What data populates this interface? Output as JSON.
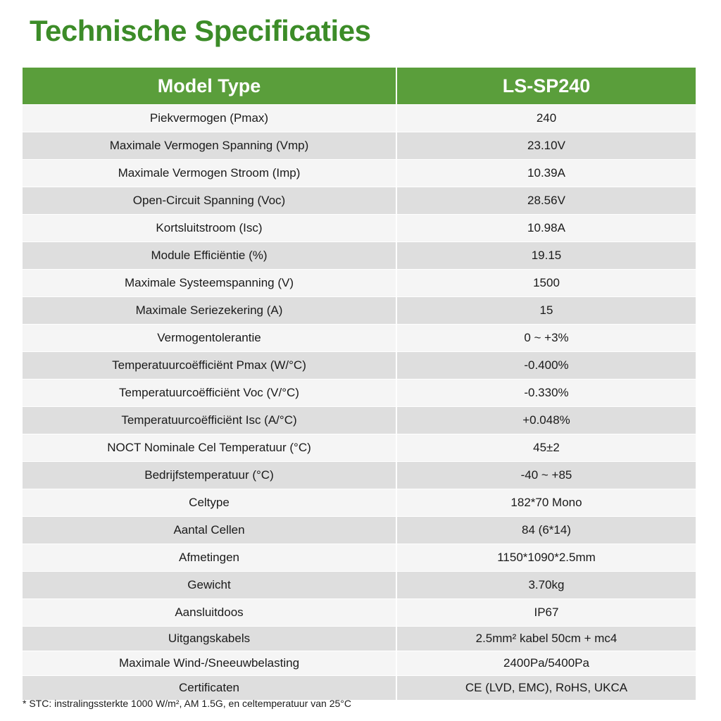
{
  "title": "Technische Specificaties",
  "table": {
    "header": [
      "Model Type",
      "LS-SP240"
    ],
    "rows": [
      [
        "Piekvermogen (Pmax)",
        "240"
      ],
      [
        "Maximale Vermogen Spanning (Vmp)",
        "23.10V"
      ],
      [
        "Maximale Vermogen Stroom (Imp)",
        "10.39A"
      ],
      [
        "Open-Circuit Spanning (Voc)",
        "28.56V"
      ],
      [
        "Kortsluitstroom (Isc)",
        "10.98A"
      ],
      [
        "Module Efficiëntie (%)",
        "19.15"
      ],
      [
        "Maximale Systeemspanning (V)",
        "1500"
      ],
      [
        "Maximale Seriezekering (A)",
        "15"
      ],
      [
        "Vermogentolerantie",
        "0 ~ +3%"
      ],
      [
        "Temperatuurcoëfficiënt Pmax (W/°C)",
        "-0.400%"
      ],
      [
        "Temperatuurcoëfficiënt Voc (V/°C)",
        "-0.330%"
      ],
      [
        "Temperatuurcoëfficiënt Isc (A/°C)",
        "+0.048%"
      ],
      [
        "NOCT Nominale Cel Temperatuur (°C)",
        "45±2"
      ],
      [
        "Bedrijfstemperatuur (°C)",
        "-40 ~ +85"
      ],
      [
        "Celtype",
        "182*70 Mono"
      ],
      [
        "Aantal Cellen",
        "84 (6*14)"
      ],
      [
        "Afmetingen",
        "1150*1090*2.5mm"
      ],
      [
        "Gewicht",
        "3.70kg"
      ],
      [
        "Aansluitdoos",
        "IP67"
      ],
      [
        "Uitgangskabels",
        "2.5mm² kabel 50cm + mc4"
      ],
      [
        "Maximale Wind-/Sneeuwbelasting",
        "2400Pa/5400Pa"
      ],
      [
        "Certificaten",
        "CE (LVD, EMC), RoHS, UKCA"
      ]
    ]
  },
  "footnote": "* STC: instralingssterkte 1000 W/m², AM 1.5G, en celtemperatuur van 25°C",
  "colors": {
    "title": "#3c8c28",
    "header_bg": "#5a9e3b",
    "row_light": "#f5f5f5",
    "row_dark": "#dedede"
  }
}
